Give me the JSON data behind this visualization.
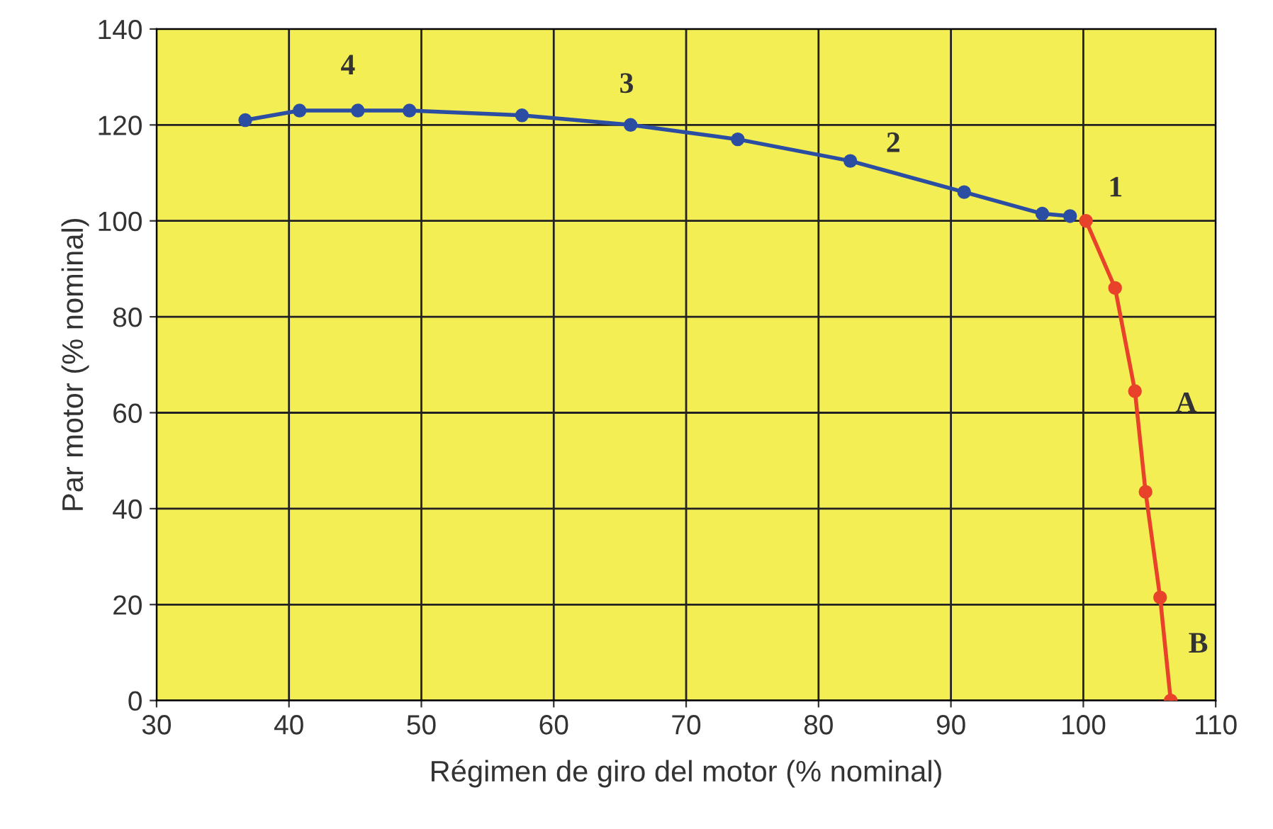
{
  "chart_data": {
    "type": "line",
    "xlabel": "Régimen de giro del motor (% nominal)",
    "ylabel": "Par motor (% nominal)",
    "xlim": [
      30,
      110
    ],
    "xticks": [
      30,
      40,
      50,
      60,
      70,
      80,
      90,
      100,
      110
    ],
    "ylim": [
      0,
      140
    ],
    "yticks": [
      0,
      20,
      40,
      60,
      80,
      100,
      120,
      140
    ],
    "grid": true,
    "marker": "circle",
    "line_style": "solid",
    "series": [
      {
        "color": "#2b4ea2",
        "x": [
          36.7,
          40.8,
          45.2,
          49.1,
          57.6,
          65.8,
          73.9,
          82.4,
          91.0,
          96.9,
          99.0
        ],
        "values": [
          121,
          123,
          123,
          123,
          122,
          120,
          117,
          112.5,
          106,
          101.5,
          101
        ]
      },
      {
        "color": "#e8432a",
        "x": [
          100.2,
          102.4,
          103.9,
          104.7,
          105.8,
          106.6
        ],
        "values": [
          100,
          86,
          64.5,
          43.5,
          21.5,
          0
        ]
      }
    ],
    "annotations": [
      {
        "text": "4",
        "x": 45.2,
        "y": 123
      },
      {
        "text": "3",
        "x": 65.8,
        "y": 120
      },
      {
        "text": "2",
        "x": 91.0,
        "y": 106
      },
      {
        "text": "1",
        "x": 100.2,
        "y": 100
      },
      {
        "text": "A",
        "x": 103.9,
        "y": 64.5
      },
      {
        "text": "B",
        "x": 106.6,
        "y": 0
      }
    ]
  }
}
